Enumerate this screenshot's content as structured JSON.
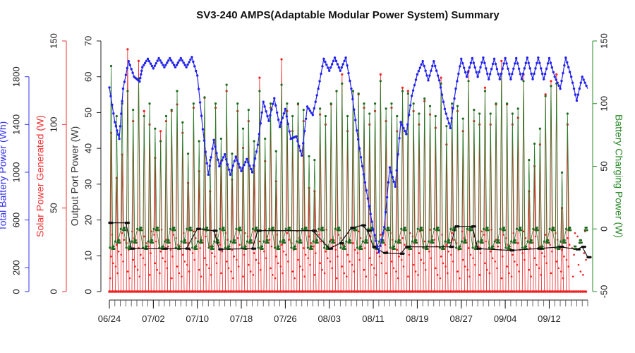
{
  "chart_data": {
    "type": "line",
    "title": "SV3-240 AMPS(Adaptable Modular Power System) Summary",
    "xlabel": "",
    "x_ticks": [
      "06/24",
      "07/02",
      "07/10",
      "07/18",
      "07/26",
      "08/03",
      "08/11",
      "08/19",
      "08/27",
      "09/04",
      "09/12"
    ],
    "x_range": [
      "06/24",
      "09/12"
    ],
    "grid": false,
    "legend": "none",
    "axes": [
      {
        "id": "battery",
        "label": "Total Battery Power (Wh)",
        "ylim": [
          0,
          2100
        ],
        "ticks": [
          0,
          200,
          600,
          1000,
          1400,
          1800
        ],
        "color": "#3333ee"
      },
      {
        "id": "solar",
        "label": "Solar Power Generated (W)",
        "ylim": [
          0,
          150
        ],
        "ticks": [
          0,
          50,
          100,
          150
        ],
        "color": "#ee3333"
      },
      {
        "id": "output",
        "label": "Output Port Power (W)",
        "ylim": [
          0,
          70
        ],
        "ticks": [
          0,
          10,
          20,
          30,
          40,
          50,
          60,
          70
        ],
        "color": "#333333"
      },
      {
        "id": "charging",
        "label": "Battery Charging Power (W)",
        "ylim": [
          -50,
          150
        ],
        "ticks": [
          -50,
          0,
          50,
          100,
          150
        ],
        "color": "#2a8a2a"
      }
    ],
    "series": [
      {
        "axis": "battery",
        "color": "#2222ee",
        "style": "line-dots",
        "points": [
          [
            0,
            1710
          ],
          [
            1,
            1420
          ],
          [
            1.8,
            1280
          ],
          [
            2.5,
            1700
          ],
          [
            3.5,
            1930
          ],
          [
            4.5,
            1800
          ],
          [
            5.5,
            1760
          ],
          [
            6,
            1880
          ],
          [
            7,
            1950
          ],
          [
            8,
            1870
          ],
          [
            9,
            1955
          ],
          [
            10,
            1880
          ],
          [
            11,
            1955
          ],
          [
            12,
            1880
          ],
          [
            13,
            1955
          ],
          [
            14,
            1880
          ],
          [
            15,
            1965
          ],
          [
            16,
            1810
          ],
          [
            17,
            1360
          ],
          [
            18,
            980
          ],
          [
            19,
            1270
          ],
          [
            20,
            1050
          ],
          [
            21,
            1150
          ],
          [
            22,
            980
          ],
          [
            23,
            1130
          ],
          [
            24,
            1010
          ],
          [
            25,
            1110
          ],
          [
            26,
            1000
          ],
          [
            27,
            1230
          ],
          [
            28,
            1590
          ],
          [
            29,
            1430
          ],
          [
            30,
            1620
          ],
          [
            31,
            1380
          ],
          [
            32,
            1530
          ],
          [
            33,
            1280
          ],
          [
            34,
            1300
          ],
          [
            35,
            1140
          ],
          [
            36,
            1550
          ],
          [
            37,
            1480
          ],
          [
            38,
            1700
          ],
          [
            39,
            1950
          ],
          [
            40,
            1850
          ],
          [
            41,
            1960
          ],
          [
            42,
            1850
          ],
          [
            43,
            1960
          ],
          [
            44,
            1700
          ],
          [
            45,
            1350
          ],
          [
            46,
            1050
          ],
          [
            47,
            780
          ],
          [
            48,
            520
          ],
          [
            49,
            330
          ],
          [
            50,
            540
          ],
          [
            51,
            1040
          ],
          [
            52,
            880
          ],
          [
            53,
            1420
          ],
          [
            54,
            1320
          ],
          [
            55,
            1640
          ],
          [
            56,
            1820
          ],
          [
            57,
            1930
          ],
          [
            58,
            1770
          ],
          [
            59,
            1930
          ],
          [
            60,
            1770
          ],
          [
            61,
            1530
          ],
          [
            62,
            1370
          ],
          [
            63,
            1700
          ],
          [
            64,
            1950
          ],
          [
            65,
            1800
          ],
          [
            66,
            1955
          ],
          [
            67,
            1800
          ],
          [
            68,
            1960
          ],
          [
            69,
            1780
          ],
          [
            70,
            1950
          ],
          [
            71,
            1780
          ],
          [
            72,
            1955
          ],
          [
            73,
            1780
          ],
          [
            74,
            1955
          ],
          [
            75,
            1780
          ],
          [
            76,
            1960
          ],
          [
            77,
            1780
          ],
          [
            78,
            1960
          ],
          [
            79,
            1780
          ],
          [
            80,
            1955
          ],
          [
            81,
            1800
          ],
          [
            82,
            1700
          ],
          [
            83,
            1960
          ],
          [
            84,
            1800
          ],
          [
            85,
            1600
          ],
          [
            86,
            1800
          ],
          [
            87,
            1700
          ]
        ]
      },
      {
        "axis": "solar",
        "color": "#ee2222",
        "style": "spikes",
        "baseline": 0,
        "peaks": [
          95,
          68,
          82,
          145,
          102,
          138,
          108,
          100,
          80,
          96,
          102,
          108,
          112,
          95,
          65,
          110,
          72,
          116,
          60,
          110,
          78,
          120,
          67,
          108,
          86,
          102,
          75,
          128,
          78,
          110,
          66,
          139,
          108,
          96,
          112,
          102,
          62,
          60,
          106,
          100,
          112,
          120,
          130,
          96,
          120,
          118,
          110,
          100,
          108,
          130,
          102,
          110,
          96,
          122,
          120,
          108,
          100,
          114,
          106,
          98,
          128,
          88,
          110,
          108,
          96,
          132,
          102,
          100,
          122,
          100,
          112,
          138,
          112,
          100,
          104,
          130,
          60,
          75,
          88,
          118,
          126,
          130,
          50,
          100
        ]
      },
      {
        "axis": "output",
        "color": "#111111",
        "style": "line-dots",
        "points": [
          [
            0,
            19.2
          ],
          [
            3,
            19.2
          ],
          [
            4,
            12
          ],
          [
            10,
            12
          ],
          [
            14,
            12
          ],
          [
            16,
            17.5
          ],
          [
            19,
            17
          ],
          [
            20,
            11.8
          ],
          [
            26,
            12
          ],
          [
            27,
            17
          ],
          [
            37,
            17
          ],
          [
            40,
            12
          ],
          [
            42,
            13.5
          ],
          [
            44,
            17.8
          ],
          [
            46,
            18.5
          ],
          [
            47,
            17
          ],
          [
            48,
            12.5
          ],
          [
            50,
            10.8
          ],
          [
            53,
            10.6
          ],
          [
            54,
            12.5
          ],
          [
            62,
            12.5
          ],
          [
            63,
            18.2
          ],
          [
            66,
            18.2
          ],
          [
            67,
            12
          ],
          [
            73,
            11.5
          ],
          [
            78,
            12
          ],
          [
            82,
            12.5
          ],
          [
            85,
            11.8
          ],
          [
            86,
            12.5
          ],
          [
            87,
            9.6
          ]
        ]
      },
      {
        "axis": "charging",
        "color": "#227722",
        "style": "spikes-band",
        "band": [
          -15,
          -10,
          0
        ],
        "peaks": [
          130,
          90,
          100,
          110,
          95,
          120,
          90,
          100,
          80,
          70,
          90,
          95,
          110,
          85,
          60,
          100,
          70,
          105,
          55,
          100,
          72,
          115,
          60,
          100,
          80,
          95,
          70,
          110,
          72,
          100,
          62,
          115,
          100,
          90,
          100,
          95,
          58,
          55,
          96,
          90,
          100,
          110,
          116,
          90,
          110,
          108,
          100,
          92,
          100,
          118,
          96,
          100,
          90,
          110,
          108,
          100,
          92,
          104,
          98,
          90,
          116,
          82,
          100,
          98,
          88,
          118,
          95,
          92,
          110,
          92,
          100,
          124,
          100,
          92,
          96,
          118,
          55,
          68,
          80,
          106,
          114,
          116,
          45,
          92
        ]
      }
    ]
  }
}
